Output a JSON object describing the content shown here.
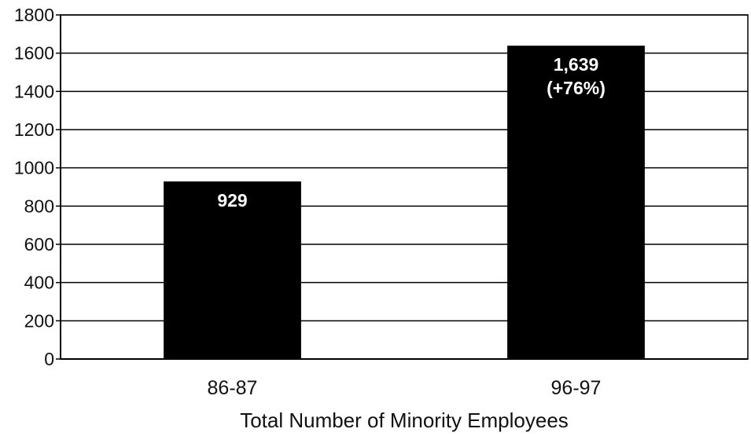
{
  "chart_data": {
    "type": "bar",
    "title": "",
    "xlabel": "Total Number of Minority Employees",
    "ylabel": "",
    "categories": [
      "86-87",
      "96-97"
    ],
    "values": [
      929,
      1639
    ],
    "data_labels": [
      [
        "929"
      ],
      [
        "1,639",
        "(+76%)"
      ]
    ],
    "ylim": [
      0,
      1800
    ],
    "yticks": [
      0,
      200,
      400,
      600,
      800,
      1000,
      1200,
      1400,
      1600,
      1800
    ],
    "grid": "horizontal",
    "legend": "none",
    "bar_color": "#000000",
    "grid_color": "#000000",
    "label_color": "#ffffff"
  }
}
